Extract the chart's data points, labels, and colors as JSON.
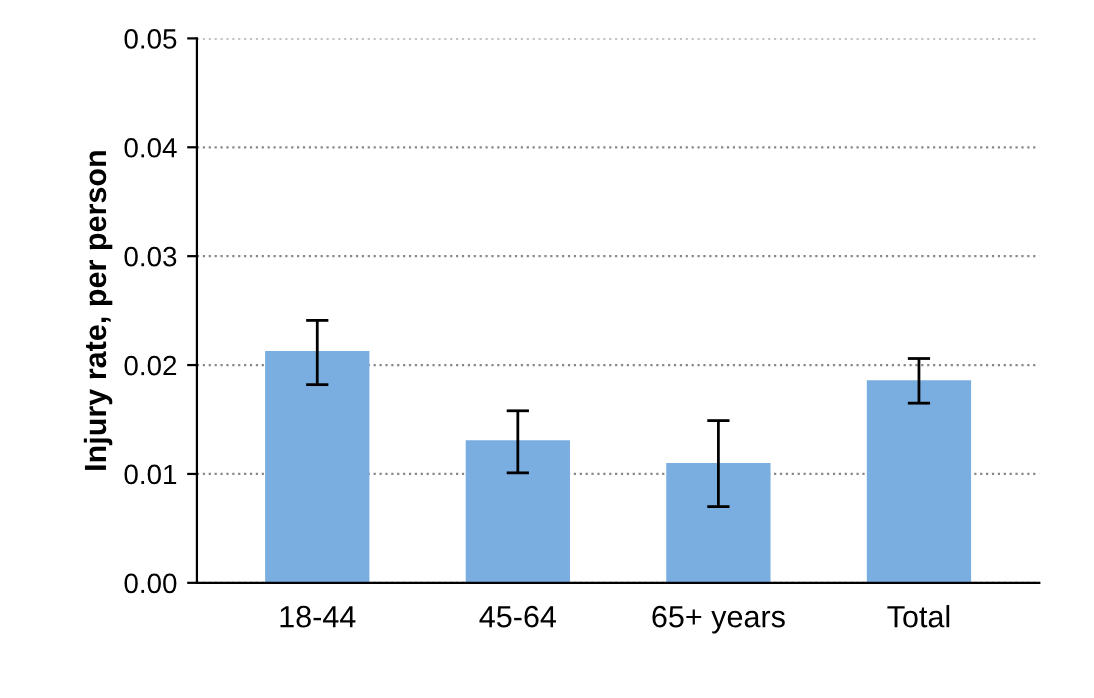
{
  "chart_data": {
    "type": "bar",
    "ylabel": "Injury rate, per person",
    "categories": [
      "18-44",
      "45-64",
      "65+ years",
      "Total"
    ],
    "values": [
      0.0213,
      0.0131,
      0.011,
      0.0186
    ],
    "errors": [
      [
        0.0182,
        0.0241
      ],
      [
        0.0101,
        0.0158
      ],
      [
        0.007,
        0.0149
      ],
      [
        0.0165,
        0.0206
      ]
    ],
    "color": "#7aaee0",
    "ylim": [
      0,
      0.05
    ],
    "yticks": [
      {
        "value": 0,
        "label": "0.00"
      },
      {
        "value": 0.01,
        "label": "0.01"
      },
      {
        "value": 0.02,
        "label": "0.02"
      },
      {
        "value": 0.03,
        "label": "0.03"
      },
      {
        "value": 0.04,
        "label": "0.04"
      },
      {
        "value": 0.05,
        "label": "0.05"
      }
    ],
    "grid": "y"
  }
}
